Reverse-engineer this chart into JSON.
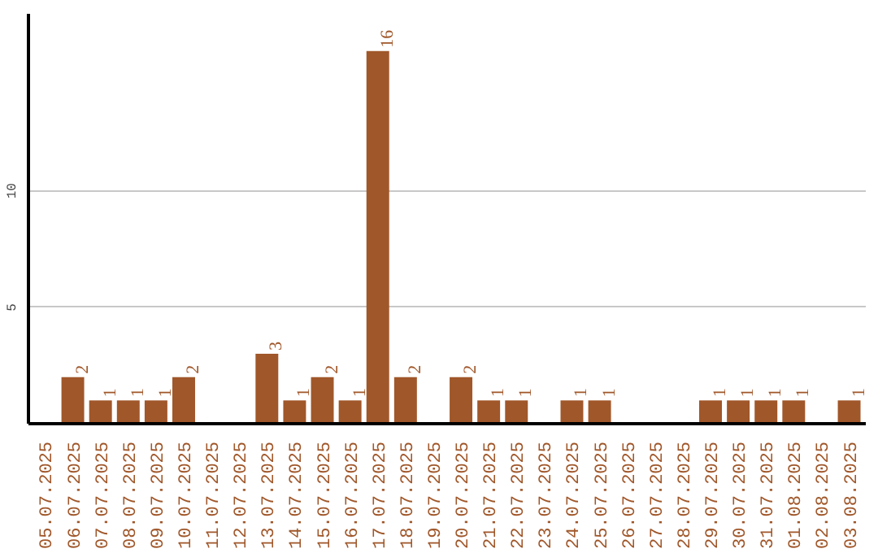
{
  "chart_data": {
    "type": "bar",
    "categories": [
      "05.07.2025",
      "06.07.2025",
      "07.07.2025",
      "08.07.2025",
      "09.07.2025",
      "10.07.2025",
      "11.07.2025",
      "12.07.2025",
      "13.07.2025",
      "14.07.2025",
      "15.07.2025",
      "16.07.2025",
      "17.07.2025",
      "18.07.2025",
      "19.07.2025",
      "20.07.2025",
      "21.07.2025",
      "22.07.2025",
      "23.07.2025",
      "24.07.2025",
      "25.07.2025",
      "26.07.2025",
      "27.07.2025",
      "28.07.2025",
      "29.07.2025",
      "30.07.2025",
      "31.07.2025",
      "01.08.2025",
      "02.08.2025",
      "03.08.2025"
    ],
    "values": [
      0,
      2,
      1,
      1,
      1,
      2,
      0,
      0,
      3,
      1,
      2,
      1,
      16,
      2,
      0,
      2,
      1,
      1,
      0,
      1,
      1,
      0,
      0,
      0,
      1,
      1,
      1,
      1,
      0,
      1
    ],
    "value_labels": [
      null,
      "2",
      "1",
      "1",
      "1",
      "2",
      null,
      null,
      "3",
      "1",
      "2",
      "1",
      "16",
      "2",
      null,
      "2",
      "1",
      "1",
      null,
      "1",
      "1",
      null,
      null,
      null,
      "1",
      "1",
      "1",
      "1",
      null,
      "1"
    ],
    "color": "#a0572a",
    "ylim": [
      0,
      17.6
    ],
    "yticks": [
      5,
      10
    ],
    "grid": "y"
  }
}
